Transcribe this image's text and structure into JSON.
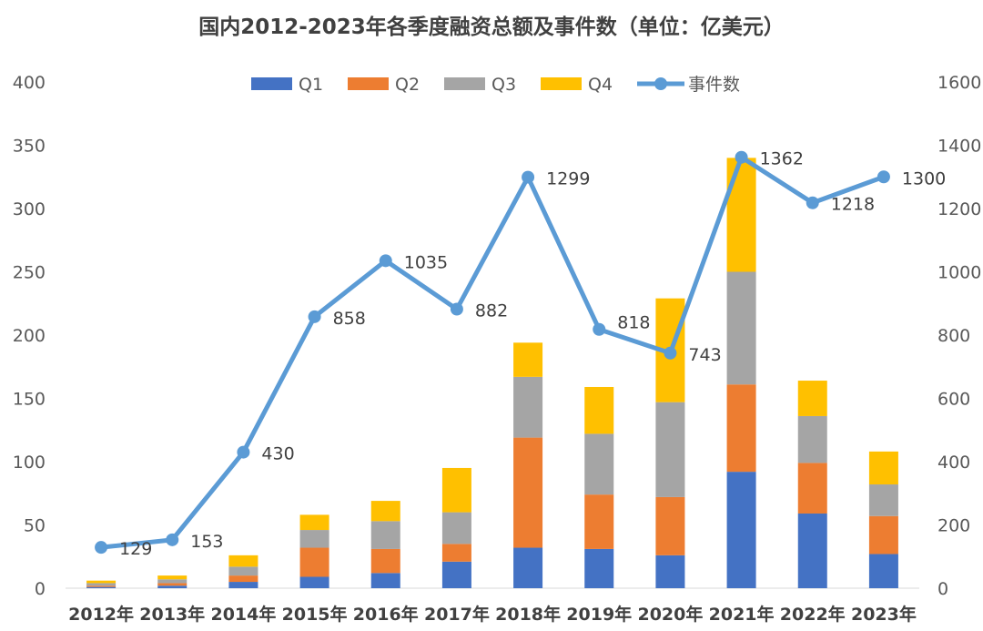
{
  "chart_data": {
    "type": "bar",
    "title": "国内2012-2023年各季度融资总额及事件数（单位：亿美元）",
    "categories": [
      "2012年",
      "2013年",
      "2014年",
      "2015年",
      "2016年",
      "2017年",
      "2018年",
      "2019年",
      "2020年",
      "2021年",
      "2022年",
      "2023年"
    ],
    "stacked": true,
    "series": [
      {
        "name": "Q1",
        "type": "bar",
        "axis": "left",
        "color": "#4472C4",
        "values": [
          1,
          2,
          5,
          9,
          12,
          21,
          32,
          31,
          26,
          92,
          59,
          27
        ]
      },
      {
        "name": "Q2",
        "type": "bar",
        "axis": "left",
        "color": "#ED7D31",
        "values": [
          1,
          2,
          5,
          23,
          19,
          14,
          87,
          43,
          46,
          69,
          40,
          30
        ]
      },
      {
        "name": "Q3",
        "type": "bar",
        "axis": "left",
        "color": "#A5A5A5",
        "values": [
          2,
          3,
          7,
          14,
          22,
          25,
          48,
          48,
          75,
          89,
          37,
          25
        ]
      },
      {
        "name": "Q4",
        "type": "bar",
        "axis": "left",
        "color": "#FFC000",
        "values": [
          2,
          3,
          9,
          12,
          16,
          35,
          27,
          37,
          82,
          90,
          28,
          26
        ]
      },
      {
        "name": "事件数",
        "type": "line",
        "axis": "right",
        "color": "#5B9BD5",
        "values": [
          129,
          153,
          430,
          858,
          1035,
          882,
          1299,
          818,
          743,
          1362,
          1218,
          1300
        ],
        "labels": [
          "129",
          "153",
          "430",
          "858",
          "1035",
          "882",
          "1299",
          "818",
          "743",
          "1362",
          "1218",
          "1300"
        ]
      }
    ],
    "y_left": {
      "range": [
        0,
        400
      ],
      "ticks": [
        "0",
        "50",
        "100",
        "150",
        "200",
        "250",
        "300",
        "350",
        "400"
      ]
    },
    "y_right": {
      "range": [
        0,
        1600
      ],
      "ticks": [
        "0",
        "200",
        "400",
        "600",
        "800",
        "1000",
        "1200",
        "1400",
        "1600"
      ]
    },
    "grid": false,
    "legend_position": "top"
  }
}
